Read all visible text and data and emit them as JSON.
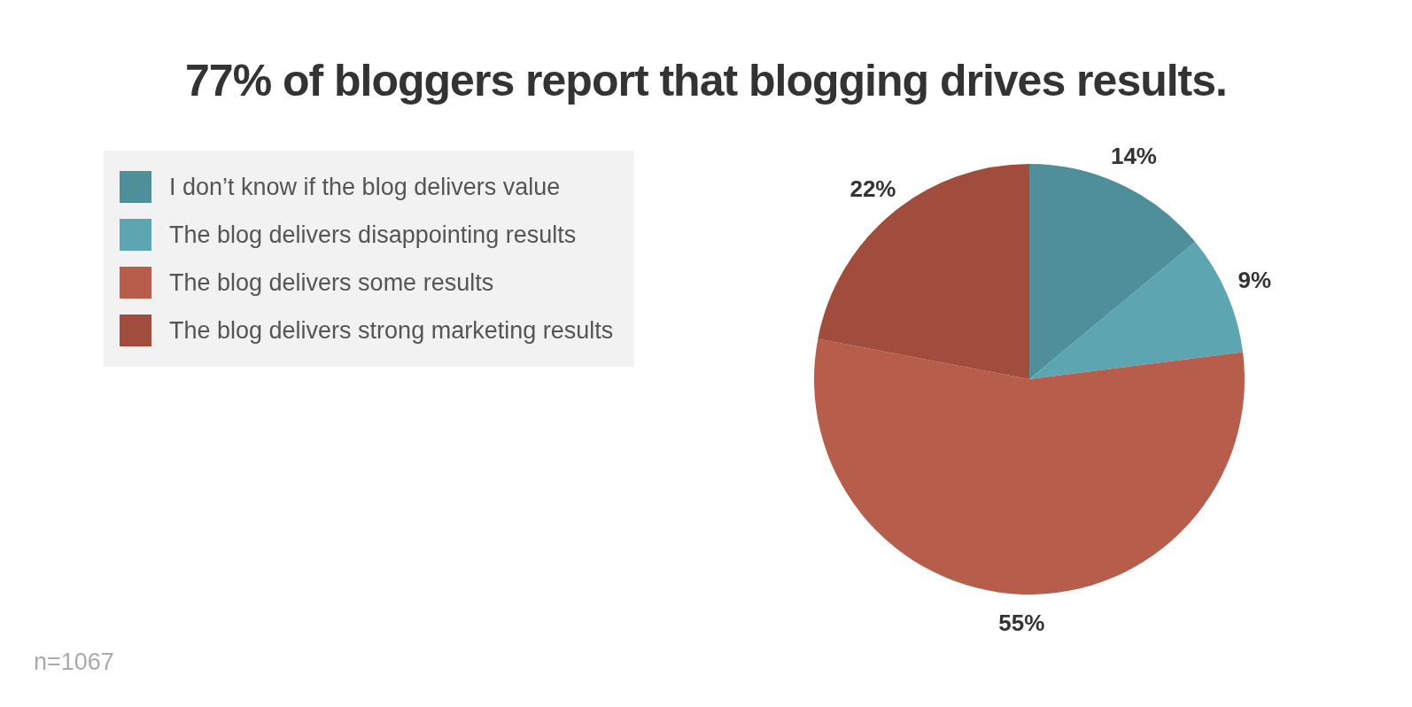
{
  "chart_data": {
    "type": "pie",
    "title": "77% of bloggers report that blogging drives results.",
    "categories": [
      "I don’t know if the blog delivers value",
      "The blog delivers disappointing results",
      "The blog delivers some results",
      "The blog delivers strong marketing results"
    ],
    "values": [
      14,
      9,
      55,
      22
    ],
    "colors": [
      "#4f8f9a",
      "#5ca5b1",
      "#b65e4b",
      "#a04d3d"
    ],
    "value_labels": [
      "14%",
      "9%",
      "55%",
      "22%"
    ],
    "legend": "top left",
    "annotations": [
      "n=1067"
    ]
  }
}
